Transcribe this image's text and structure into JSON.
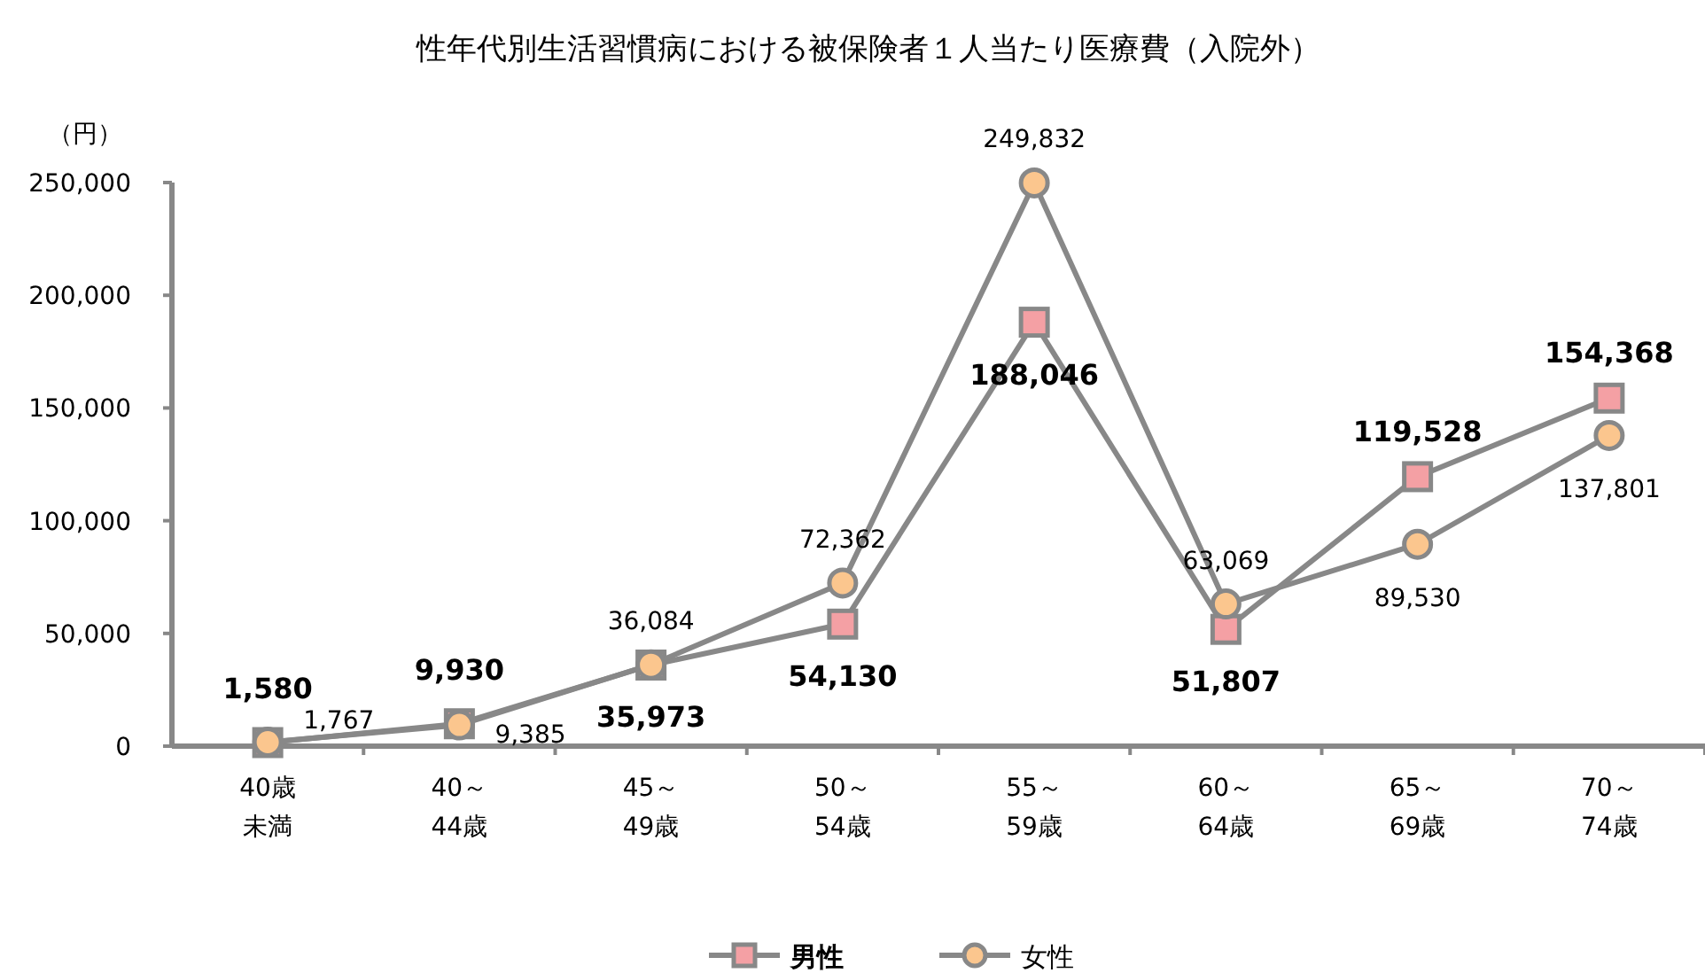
{
  "chart_data": {
    "type": "line",
    "title": "性年代別生活習慣病における被保険者１人当たり医療費（入院外）",
    "ylabel": "（円）",
    "categories": [
      "40歳未満",
      "40～44歳",
      "45～49歳",
      "50～54歳",
      "55～59歳",
      "60～64歳",
      "65～69歳",
      "70～74歳"
    ],
    "ylim": [
      0,
      250000
    ],
    "yticks": [
      0,
      {
        "value": 50000,
        "label": "50,000"
      },
      {
        "value": 100000,
        "label": "100,000"
      },
      {
        "value": 150000,
        "label": "150,000"
      },
      {
        "value": 200000,
        "label": "200,000"
      },
      {
        "value": 250000,
        "label": "250,000"
      }
    ],
    "legend": "bottom",
    "grid": false,
    "series": [
      {
        "name": "男性",
        "color": "#f4a0a4",
        "marker": "square",
        "values": [
          1580,
          9930,
          35973,
          54130,
          188046,
          51807,
          119528,
          154368
        ],
        "value_labels": [
          "1,580",
          "9,930",
          "35,973",
          "54,130",
          "188,046",
          "51,807",
          "119,528",
          "154,368"
        ]
      },
      {
        "name": "女性",
        "color": "#fbc68e",
        "marker": "circle",
        "values": [
          1767,
          9385,
          36084,
          72362,
          249832,
          63069,
          89530,
          137801
        ],
        "value_labels": [
          "1,767",
          "9,385",
          "36,084",
          "72,362",
          "249,832",
          "63,069",
          "89,530",
          "137,801"
        ]
      }
    ]
  }
}
